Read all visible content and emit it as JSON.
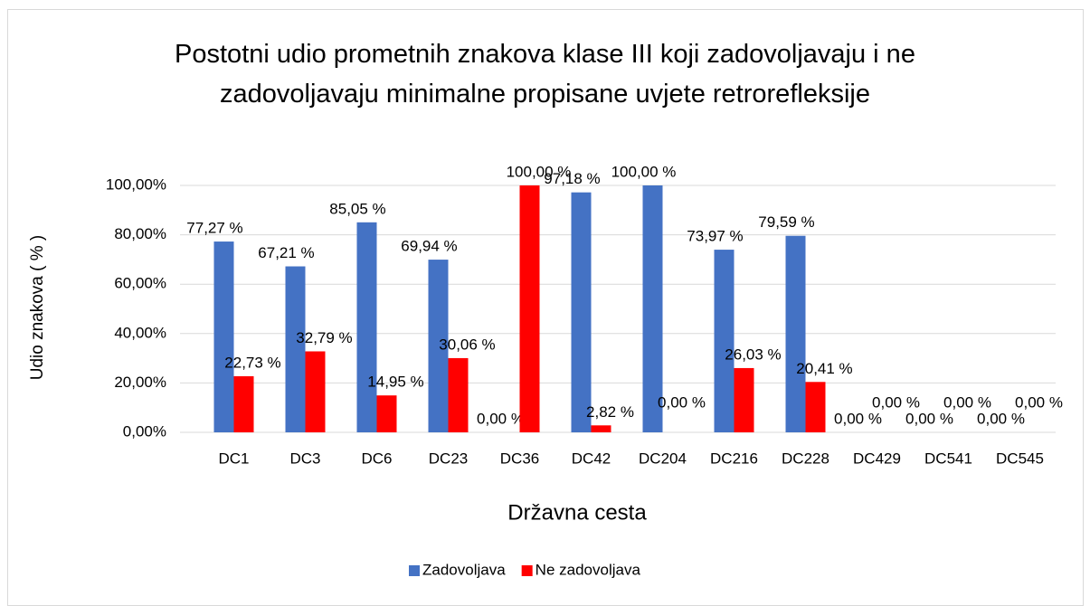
{
  "chart_data": {
    "type": "bar",
    "title": "Postotni udio prometnih znakova klase III koji zadovoljavaju i ne zadovoljavaju minimalne propisane uvjete retrorefleksije",
    "x_label": "Državna cesta",
    "y_label": "Udio znakova ( % )",
    "categories": [
      "DC1",
      "DC3",
      "DC6",
      "DC23",
      "DC36",
      "DC42",
      "DC204",
      "DC216",
      "DC228",
      "DC429",
      "DC541",
      "DC545"
    ],
    "series": [
      {
        "name": "Zadovoljava",
        "color": "#4472c4",
        "values": [
          77.27,
          67.21,
          85.05,
          69.94,
          0,
          97.18,
          100,
          73.97,
          79.59,
          0,
          0,
          0
        ],
        "value_labels": [
          "77,27 %",
          "67,21 %",
          "85,05 %",
          "69,94 %",
          "0,00 %",
          "97,18 %",
          "100,00 %",
          "73,97 %",
          "79,59 %",
          "0,00 %",
          "0,00 %",
          "0,00 %"
        ]
      },
      {
        "name": "Ne zadovoljava",
        "color": "#ff0000",
        "values": [
          22.73,
          32.79,
          14.95,
          30.06,
          100,
          2.82,
          0,
          26.03,
          20.41,
          0,
          0,
          0
        ],
        "value_labels": [
          "22,73 %",
          "32,79 %",
          "14,95 %",
          "30,06 %",
          "100,00 %",
          "2,82 %",
          "0,00 %",
          "26,03 %",
          "20,41 %",
          "0,00 %",
          "0,00 %",
          "0,00 %"
        ]
      }
    ],
    "ylim": [
      0,
      100
    ],
    "yticks": [
      {
        "value": 0,
        "label": "0,00%"
      },
      {
        "value": 20,
        "label": "20,00%"
      },
      {
        "value": 40,
        "label": "40,00%"
      },
      {
        "value": 60,
        "label": "60,00%"
      },
      {
        "value": 80,
        "label": "80,00%"
      },
      {
        "value": 100,
        "label": "100,00%"
      }
    ],
    "grid": true,
    "legend": "bottom"
  }
}
